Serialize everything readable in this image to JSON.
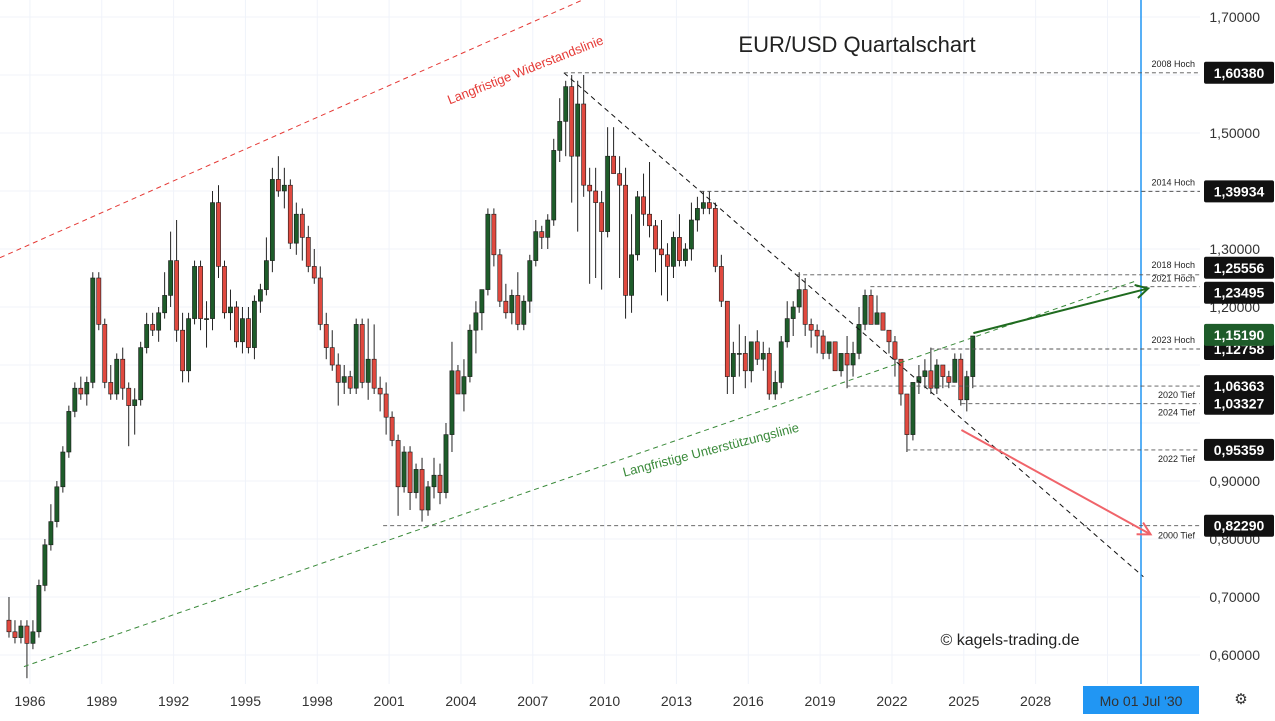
{
  "title": "EUR/USD Quartalschart",
  "copyright": "© kagels-trading.de",
  "colors": {
    "up": "#1e5c2a",
    "down": "#e0493f",
    "resistance": "#e53935",
    "support": "#3a8a3a",
    "cursor": "#2196f3",
    "dark": "#111111",
    "arrow_up": "#1f6b1f",
    "arrow_down": "#f0646a"
  },
  "chart_data": {
    "type": "candlestick",
    "title": "EUR/USD Quartalschart",
    "x_ticks": [
      "1986",
      "1989",
      "1992",
      "1995",
      "1998",
      "2001",
      "2004",
      "2007",
      "2010",
      "2013",
      "2016",
      "2019",
      "2022",
      "2025",
      "2028"
    ],
    "y_ticks": [
      "1,70000",
      "1,50000",
      "1,30000",
      "1,20000",
      "0,90000",
      "0,80000",
      "0,70000",
      "0,60000"
    ],
    "ylim": [
      0.55,
      1.72
    ],
    "xlim": [
      1984.75,
      2032.5
    ],
    "candles": [
      [
        1985.0,
        0.66,
        0.7,
        0.63,
        0.64
      ],
      [
        1985.25,
        0.64,
        0.66,
        0.62,
        0.63
      ],
      [
        1985.5,
        0.63,
        0.66,
        0.62,
        0.65
      ],
      [
        1985.75,
        0.65,
        0.66,
        0.56,
        0.62
      ],
      [
        1986.0,
        0.62,
        0.66,
        0.61,
        0.64
      ],
      [
        1986.25,
        0.64,
        0.73,
        0.63,
        0.72
      ],
      [
        1986.5,
        0.72,
        0.8,
        0.71,
        0.79
      ],
      [
        1986.75,
        0.79,
        0.86,
        0.78,
        0.83
      ],
      [
        1987.0,
        0.83,
        0.9,
        0.82,
        0.89
      ],
      [
        1987.25,
        0.89,
        0.96,
        0.88,
        0.95
      ],
      [
        1987.5,
        0.95,
        1.03,
        0.94,
        1.02
      ],
      [
        1987.75,
        1.02,
        1.07,
        1.01,
        1.06
      ],
      [
        1988.0,
        1.06,
        1.08,
        1.04,
        1.05
      ],
      [
        1988.25,
        1.05,
        1.08,
        1.03,
        1.07
      ],
      [
        1988.5,
        1.07,
        1.26,
        1.06,
        1.25
      ],
      [
        1988.75,
        1.25,
        1.26,
        1.16,
        1.17
      ],
      [
        1989.0,
        1.17,
        1.18,
        1.06,
        1.07
      ],
      [
        1989.25,
        1.07,
        1.1,
        1.04,
        1.05
      ],
      [
        1989.5,
        1.05,
        1.12,
        1.04,
        1.11
      ],
      [
        1989.75,
        1.11,
        1.13,
        1.04,
        1.06
      ],
      [
        1990.0,
        1.06,
        1.07,
        0.96,
        1.03
      ],
      [
        1990.25,
        1.03,
        1.06,
        0.98,
        1.04
      ],
      [
        1990.5,
        1.04,
        1.14,
        1.03,
        1.13
      ],
      [
        1990.75,
        1.13,
        1.19,
        1.12,
        1.17
      ],
      [
        1991.0,
        1.17,
        1.19,
        1.15,
        1.16
      ],
      [
        1991.25,
        1.16,
        1.2,
        1.14,
        1.19
      ],
      [
        1991.5,
        1.19,
        1.26,
        1.18,
        1.22
      ],
      [
        1991.75,
        1.22,
        1.33,
        1.2,
        1.28
      ],
      [
        1992.0,
        1.28,
        1.35,
        1.14,
        1.16
      ],
      [
        1992.25,
        1.16,
        1.19,
        1.07,
        1.09
      ],
      [
        1992.5,
        1.09,
        1.19,
        1.07,
        1.18
      ],
      [
        1992.75,
        1.18,
        1.28,
        1.17,
        1.27
      ],
      [
        1993.0,
        1.27,
        1.28,
        1.16,
        1.18
      ],
      [
        1993.25,
        1.18,
        1.21,
        1.13,
        1.18
      ],
      [
        1993.5,
        1.18,
        1.4,
        1.16,
        1.38
      ],
      [
        1993.75,
        1.38,
        1.41,
        1.25,
        1.27
      ],
      [
        1994.0,
        1.27,
        1.28,
        1.18,
        1.19
      ],
      [
        1994.25,
        1.19,
        1.23,
        1.16,
        1.2
      ],
      [
        1994.5,
        1.2,
        1.21,
        1.13,
        1.14
      ],
      [
        1994.75,
        1.14,
        1.2,
        1.12,
        1.18
      ],
      [
        1995.0,
        1.18,
        1.2,
        1.12,
        1.13
      ],
      [
        1995.25,
        1.13,
        1.22,
        1.11,
        1.21
      ],
      [
        1995.5,
        1.21,
        1.24,
        1.19,
        1.23
      ],
      [
        1995.75,
        1.23,
        1.32,
        1.22,
        1.28
      ],
      [
        1996.0,
        1.28,
        1.44,
        1.26,
        1.42
      ],
      [
        1996.25,
        1.42,
        1.46,
        1.39,
        1.4
      ],
      [
        1996.5,
        1.4,
        1.44,
        1.37,
        1.41
      ],
      [
        1996.75,
        1.41,
        1.42,
        1.3,
        1.31
      ],
      [
        1997.0,
        1.31,
        1.38,
        1.29,
        1.36
      ],
      [
        1997.25,
        1.36,
        1.37,
        1.28,
        1.32
      ],
      [
        1997.5,
        1.32,
        1.34,
        1.26,
        1.27
      ],
      [
        1997.75,
        1.27,
        1.3,
        1.24,
        1.25
      ],
      [
        1998.0,
        1.25,
        1.27,
        1.16,
        1.17
      ],
      [
        1998.25,
        1.17,
        1.19,
        1.11,
        1.13
      ],
      [
        1998.5,
        1.13,
        1.16,
        1.09,
        1.1
      ],
      [
        1998.75,
        1.1,
        1.12,
        1.03,
        1.07
      ],
      [
        1999.0,
        1.07,
        1.1,
        1.05,
        1.08
      ],
      [
        1999.25,
        1.08,
        1.09,
        1.05,
        1.06
      ],
      [
        1999.5,
        1.06,
        1.18,
        1.05,
        1.17
      ],
      [
        1999.75,
        1.17,
        1.18,
        1.06,
        1.07
      ],
      [
        2000.0,
        1.07,
        1.18,
        1.04,
        1.11
      ],
      [
        2000.25,
        1.11,
        1.17,
        1.05,
        1.06
      ],
      [
        2000.5,
        1.06,
        1.08,
        1.02,
        1.05
      ],
      [
        2000.75,
        1.05,
        1.07,
        0.98,
        1.01
      ],
      [
        2001.0,
        1.01,
        1.02,
        0.96,
        0.97
      ],
      [
        2001.25,
        0.97,
        0.98,
        0.84,
        0.89
      ],
      [
        2001.5,
        0.89,
        0.96,
        0.88,
        0.95
      ],
      [
        2001.75,
        0.95,
        0.96,
        0.85,
        0.88
      ],
      [
        2002.0,
        0.88,
        0.93,
        0.87,
        0.92
      ],
      [
        2002.25,
        0.92,
        0.94,
        0.83,
        0.85
      ],
      [
        2002.5,
        0.85,
        0.9,
        0.84,
        0.89
      ],
      [
        2002.75,
        0.89,
        0.94,
        0.87,
        0.91
      ],
      [
        2003.0,
        0.91,
        0.93,
        0.86,
        0.88
      ],
      [
        2003.25,
        0.88,
        1.0,
        0.87,
        0.98
      ],
      [
        2003.5,
        0.98,
        1.14,
        0.95,
        1.09
      ],
      [
        2003.75,
        1.09,
        1.1,
        1.05,
        1.05
      ],
      [
        2004.0,
        1.05,
        1.11,
        1.02,
        1.08
      ],
      [
        2004.25,
        1.08,
        1.17,
        1.07,
        1.16
      ],
      [
        2004.5,
        1.16,
        1.21,
        1.12,
        1.19
      ],
      [
        2004.75,
        1.19,
        1.23,
        1.16,
        1.23
      ],
      [
        2005.0,
        1.23,
        1.37,
        1.22,
        1.36
      ],
      [
        2005.25,
        1.36,
        1.37,
        1.27,
        1.29
      ],
      [
        2005.5,
        1.29,
        1.3,
        1.2,
        1.21
      ],
      [
        2005.75,
        1.21,
        1.24,
        1.18,
        1.19
      ],
      [
        2006.0,
        1.19,
        1.23,
        1.17,
        1.22
      ],
      [
        2006.25,
        1.22,
        1.26,
        1.16,
        1.17
      ],
      [
        2006.5,
        1.17,
        1.22,
        1.16,
        1.21
      ],
      [
        2006.75,
        1.21,
        1.29,
        1.19,
        1.28
      ],
      [
        2007.0,
        1.28,
        1.35,
        1.27,
        1.33
      ],
      [
        2007.25,
        1.33,
        1.34,
        1.3,
        1.32
      ],
      [
        2007.5,
        1.32,
        1.36,
        1.3,
        1.35
      ],
      [
        2007.75,
        1.35,
        1.49,
        1.34,
        1.47
      ],
      [
        2008.0,
        1.47,
        1.56,
        1.45,
        1.52
      ],
      [
        2008.25,
        1.52,
        1.59,
        1.46,
        1.58
      ],
      [
        2008.5,
        1.58,
        1.6,
        1.38,
        1.46
      ],
      [
        2008.75,
        1.46,
        1.59,
        1.33,
        1.55
      ],
      [
        2009.0,
        1.55,
        1.6,
        1.39,
        1.41
      ],
      [
        2009.25,
        1.41,
        1.44,
        1.24,
        1.4
      ],
      [
        2009.5,
        1.4,
        1.44,
        1.25,
        1.38
      ],
      [
        2009.75,
        1.38,
        1.4,
        1.23,
        1.33
      ],
      [
        2010.0,
        1.33,
        1.51,
        1.32,
        1.46
      ],
      [
        2010.25,
        1.46,
        1.51,
        1.44,
        1.43
      ],
      [
        2010.5,
        1.43,
        1.46,
        1.25,
        1.41
      ],
      [
        2010.75,
        1.41,
        1.44,
        1.18,
        1.22
      ],
      [
        2011.0,
        1.22,
        1.36,
        1.19,
        1.29
      ],
      [
        2011.25,
        1.29,
        1.4,
        1.28,
        1.39
      ],
      [
        2011.5,
        1.39,
        1.43,
        1.34,
        1.36
      ],
      [
        2011.75,
        1.36,
        1.45,
        1.32,
        1.34
      ],
      [
        2012.0,
        1.34,
        1.35,
        1.26,
        1.3
      ],
      [
        2012.25,
        1.3,
        1.35,
        1.22,
        1.29
      ],
      [
        2012.5,
        1.29,
        1.31,
        1.21,
        1.27
      ],
      [
        2012.75,
        1.27,
        1.33,
        1.25,
        1.32
      ],
      [
        2013.0,
        1.32,
        1.36,
        1.27,
        1.28
      ],
      [
        2013.25,
        1.28,
        1.31,
        1.27,
        1.3
      ],
      [
        2013.5,
        1.3,
        1.38,
        1.28,
        1.35
      ],
      [
        2013.75,
        1.35,
        1.39,
        1.33,
        1.37
      ],
      [
        2014.0,
        1.37,
        1.4,
        1.36,
        1.38
      ],
      [
        2014.25,
        1.38,
        1.4,
        1.36,
        1.37
      ],
      [
        2014.5,
        1.37,
        1.38,
        1.26,
        1.27
      ],
      [
        2014.75,
        1.27,
        1.29,
        1.2,
        1.21
      ],
      [
        2015.0,
        1.21,
        1.21,
        1.05,
        1.08
      ],
      [
        2015.25,
        1.08,
        1.14,
        1.05,
        1.12
      ],
      [
        2015.5,
        1.12,
        1.17,
        1.08,
        1.12
      ],
      [
        2015.75,
        1.12,
        1.15,
        1.06,
        1.09
      ],
      [
        2016.0,
        1.09,
        1.14,
        1.07,
        1.14
      ],
      [
        2016.25,
        1.14,
        1.16,
        1.1,
        1.11
      ],
      [
        2016.5,
        1.11,
        1.14,
        1.09,
        1.12
      ],
      [
        2016.75,
        1.12,
        1.13,
        1.04,
        1.05
      ],
      [
        2017.0,
        1.05,
        1.09,
        1.04,
        1.07
      ],
      [
        2017.25,
        1.07,
        1.15,
        1.06,
        1.14
      ],
      [
        2017.5,
        1.14,
        1.21,
        1.13,
        1.18
      ],
      [
        2017.75,
        1.18,
        1.21,
        1.15,
        1.2
      ],
      [
        2018.0,
        1.2,
        1.26,
        1.19,
        1.23
      ],
      [
        2018.25,
        1.23,
        1.25,
        1.15,
        1.17
      ],
      [
        2018.5,
        1.17,
        1.18,
        1.13,
        1.16
      ],
      [
        2018.75,
        1.16,
        1.17,
        1.12,
        1.15
      ],
      [
        2019.0,
        1.15,
        1.16,
        1.11,
        1.12
      ],
      [
        2019.25,
        1.12,
        1.14,
        1.11,
        1.14
      ],
      [
        2019.5,
        1.14,
        1.14,
        1.09,
        1.09
      ],
      [
        2019.75,
        1.09,
        1.12,
        1.08,
        1.12
      ],
      [
        2020.0,
        1.12,
        1.15,
        1.06,
        1.1
      ],
      [
        2020.25,
        1.1,
        1.14,
        1.08,
        1.12
      ],
      [
        2020.5,
        1.12,
        1.2,
        1.11,
        1.17
      ],
      [
        2020.75,
        1.17,
        1.23,
        1.16,
        1.22
      ],
      [
        2021.0,
        1.22,
        1.23,
        1.17,
        1.17
      ],
      [
        2021.25,
        1.17,
        1.22,
        1.17,
        1.19
      ],
      [
        2021.5,
        1.19,
        1.19,
        1.16,
        1.16
      ],
      [
        2021.75,
        1.16,
        1.16,
        1.12,
        1.14
      ],
      [
        2022.0,
        1.14,
        1.15,
        1.08,
        1.11
      ],
      [
        2022.25,
        1.11,
        1.11,
        1.03,
        1.05
      ],
      [
        2022.5,
        1.05,
        1.05,
        0.95,
        0.98
      ],
      [
        2022.75,
        0.98,
        1.07,
        0.97,
        1.07
      ],
      [
        2023.0,
        1.07,
        1.1,
        1.05,
        1.08
      ],
      [
        2023.25,
        1.08,
        1.11,
        1.06,
        1.09
      ],
      [
        2023.5,
        1.09,
        1.13,
        1.05,
        1.06
      ],
      [
        2023.75,
        1.06,
        1.11,
        1.05,
        1.1
      ],
      [
        2024.0,
        1.1,
        1.1,
        1.06,
        1.08
      ],
      [
        2024.25,
        1.08,
        1.09,
        1.06,
        1.07
      ],
      [
        2024.5,
        1.07,
        1.12,
        1.07,
        1.11
      ],
      [
        2024.75,
        1.11,
        1.12,
        1.03,
        1.04
      ],
      [
        2025.0,
        1.04,
        1.09,
        1.02,
        1.08
      ],
      [
        2025.25,
        1.08,
        1.15,
        1.06,
        1.15
      ]
    ],
    "levels": [
      {
        "name": "2008 Hoch",
        "price": "1,60380",
        "value": 1.6038,
        "start": 2008.3
      },
      {
        "name": "2014 Hoch",
        "price": "1,39934",
        "value": 1.39934,
        "start": 2014.0
      },
      {
        "name": "2018 Hoch",
        "price": "1,25556",
        "value": 1.25556,
        "start": 2018.0
      },
      {
        "name": "2021 Hoch",
        "price": "1,23495",
        "value": 1.23495,
        "start": 2021.1
      },
      {
        "name": "2023 Hoch",
        "price": "1,12758",
        "value": 1.12758,
        "start": 2023.6
      },
      {
        "name": "2020 Tief",
        "price": "1,06363",
        "value": 1.06363,
        "start": 2020.1
      },
      {
        "name": "2024 Tief",
        "price": "1,03327",
        "value": 1.03327,
        "start": 2024.9
      },
      {
        "name": "2022 Tief",
        "price": "0,95359",
        "value": 0.95359,
        "start": 2022.6
      },
      {
        "name": "2000 Tief",
        "price": "0,82290",
        "value": 0.8229,
        "start": 2000.75
      }
    ],
    "current_price": {
      "value": 1.1519,
      "label": "1,15190"
    },
    "trendlines": [
      {
        "name": "Langfristige Widerstandslinie",
        "style": "dashed",
        "color": "resistance",
        "x1": 1984.75,
        "y1": 1.285,
        "x2": 2011.3,
        "y2": 1.77
      },
      {
        "name": "Langfristige Unterstützungslinie",
        "style": "dashed",
        "color": "support",
        "x1": 1985.75,
        "y1": 0.58,
        "x2": 2032.2,
        "y2": 1.245
      },
      {
        "name": "",
        "style": "dashed",
        "color": "dark",
        "x1": 2008.3,
        "y1": 1.6038,
        "x2": 2032.5,
        "y2": 0.735
      }
    ],
    "arrows": [
      {
        "direction": "up",
        "color": "arrow_up",
        "x1": 2025.4,
        "y1": 1.155,
        "x2": 2032.7,
        "y2": 1.232
      },
      {
        "direction": "down",
        "color": "arrow_down",
        "x1": 2024.9,
        "y1": 0.988,
        "x2": 2032.8,
        "y2": 0.808
      }
    ],
    "cursor": {
      "x": 2032.4,
      "label": "Mo 01 Jul '30"
    }
  }
}
